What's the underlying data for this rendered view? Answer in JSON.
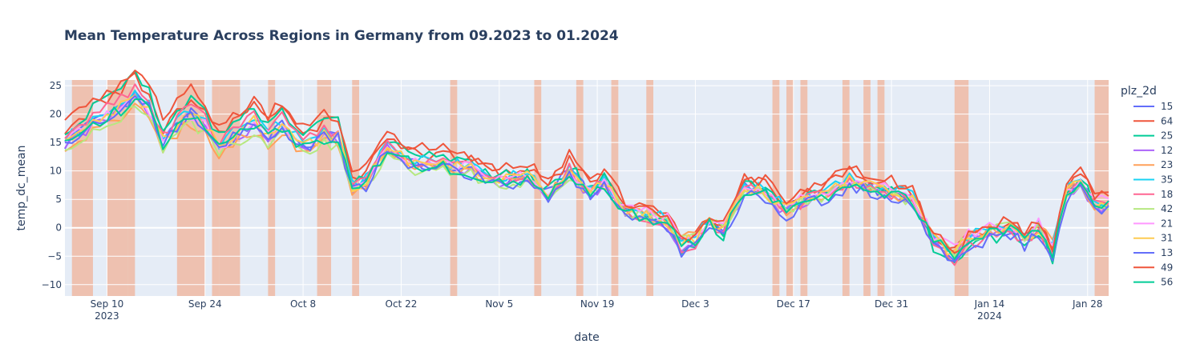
{
  "chart_data": {
    "type": "line",
    "title": "Mean Temperature Across Regions in Germany from 09.2023 to 01.2024",
    "xlabel": "date",
    "ylabel": "temp_dc_mean",
    "x_range": [
      "2023-09-04",
      "2024-01-31"
    ],
    "ylim": [
      -12,
      26
    ],
    "y_ticks": [
      -10,
      -5,
      0,
      5,
      10,
      15,
      20,
      25
    ],
    "x_ticks": [
      {
        "date": "2023-09-10",
        "label": "Sep 10",
        "sublabel": "2023"
      },
      {
        "date": "2023-09-24",
        "label": "Sep 24",
        "sublabel": ""
      },
      {
        "date": "2023-10-08",
        "label": "Oct 8",
        "sublabel": ""
      },
      {
        "date": "2023-10-22",
        "label": "Oct 22",
        "sublabel": ""
      },
      {
        "date": "2023-11-05",
        "label": "Nov 5",
        "sublabel": ""
      },
      {
        "date": "2023-11-19",
        "label": "Nov 19",
        "sublabel": ""
      },
      {
        "date": "2023-12-03",
        "label": "Dec 3",
        "sublabel": ""
      },
      {
        "date": "2023-12-17",
        "label": "Dec 17",
        "sublabel": ""
      },
      {
        "date": "2023-12-31",
        "label": "Dec 31",
        "sublabel": ""
      },
      {
        "date": "2024-01-14",
        "label": "Jan 14",
        "sublabel": "2024"
      },
      {
        "date": "2024-01-28",
        "label": "Jan 28",
        "sublabel": ""
      }
    ],
    "grid": true,
    "legend_title": "plz_2d",
    "legend_position": "right",
    "background": "#e5ecf6",
    "highlight_color": "#f4a582",
    "highlight_ranges": [
      [
        "2023-09-05",
        "2023-09-08"
      ],
      [
        "2023-09-10",
        "2023-09-13"
      ],
      [
        "2023-09-13",
        "2023-09-14"
      ],
      [
        "2023-09-20",
        "2023-09-24"
      ],
      [
        "2023-09-25",
        "2023-09-26"
      ],
      [
        "2023-09-26",
        "2023-09-29"
      ],
      [
        "2023-10-03",
        "2023-10-04"
      ],
      [
        "2023-10-10",
        "2023-10-12"
      ],
      [
        "2023-10-15",
        "2023-10-16"
      ],
      [
        "2023-10-29",
        "2023-10-30"
      ],
      [
        "2023-11-10",
        "2023-11-11"
      ],
      [
        "2023-11-16",
        "2023-11-17"
      ],
      [
        "2023-11-21",
        "2023-11-22"
      ],
      [
        "2023-11-26",
        "2023-11-27"
      ],
      [
        "2023-12-14",
        "2023-12-15"
      ],
      [
        "2023-12-16",
        "2023-12-17"
      ],
      [
        "2023-12-18",
        "2023-12-19"
      ],
      [
        "2023-12-24",
        "2023-12-25"
      ],
      [
        "2023-12-27",
        "2023-12-28"
      ],
      [
        "2023-12-29",
        "2023-12-30"
      ],
      [
        "2024-01-09",
        "2024-01-11"
      ],
      [
        "2024-01-29",
        "2024-01-31"
      ]
    ],
    "anchor_dates": [
      "2023-09-04",
      "2023-09-09",
      "2023-09-12",
      "2023-09-14",
      "2023-09-16",
      "2023-09-18",
      "2023-09-20",
      "2023-09-22",
      "2023-09-24",
      "2023-09-26",
      "2023-09-28",
      "2023-10-01",
      "2023-10-03",
      "2023-10-05",
      "2023-10-08",
      "2023-10-11",
      "2023-10-13",
      "2023-10-15",
      "2023-10-17",
      "2023-10-20",
      "2023-10-24",
      "2023-10-28",
      "2023-11-01",
      "2023-11-05",
      "2023-11-09",
      "2023-11-12",
      "2023-11-15",
      "2023-11-18",
      "2023-11-20",
      "2023-11-23",
      "2023-11-26",
      "2023-11-29",
      "2023-12-01",
      "2023-12-03",
      "2023-12-05",
      "2023-12-07",
      "2023-12-10",
      "2023-12-13",
      "2023-12-16",
      "2023-12-19",
      "2023-12-22",
      "2023-12-25",
      "2023-12-28",
      "2023-12-31",
      "2024-01-03",
      "2024-01-06",
      "2024-01-09",
      "2024-01-11",
      "2024-01-14",
      "2024-01-17",
      "2024-01-19",
      "2024-01-21",
      "2024-01-23",
      "2024-01-25",
      "2024-01-27",
      "2024-01-29",
      "2024-01-31"
    ],
    "anchor_mean": [
      15,
      19,
      21,
      23,
      21,
      15,
      18,
      20,
      18,
      14,
      16,
      18.5,
      16,
      18,
      14,
      16,
      16,
      7,
      8,
      14,
      11,
      11,
      10,
      8,
      9,
      6,
      10,
      6,
      8,
      3,
      2,
      1,
      -3,
      -2,
      1,
      -1,
      7,
      6,
      3,
      5,
      6,
      8,
      7,
      6,
      5,
      -2,
      -5,
      -2,
      -1,
      0,
      -2,
      0,
      -4,
      6,
      8,
      4,
      4
    ],
    "series": [
      {
        "name": "15",
        "color": "#636efa",
        "offset": 0.0,
        "amp": 1.0
      },
      {
        "name": "64",
        "color": "#ef553b",
        "offset": 1.0,
        "amp": 1.1
      },
      {
        "name": "25",
        "color": "#00cc96",
        "offset": -0.8,
        "amp": 1.2
      },
      {
        "name": "12",
        "color": "#ab63fa",
        "offset": -0.3,
        "amp": 1.0
      },
      {
        "name": "23",
        "color": "#ffa15a",
        "offset": 0.5,
        "amp": 0.9
      },
      {
        "name": "35",
        "color": "#19d3f3",
        "offset": 0.6,
        "amp": 1.0
      },
      {
        "name": "18",
        "color": "#ff6692",
        "offset": -0.5,
        "amp": 1.1
      },
      {
        "name": "42",
        "color": "#b6e880",
        "offset": 0.3,
        "amp": 0.9
      },
      {
        "name": "21",
        "color": "#ff97ff",
        "offset": 0.8,
        "amp": 0.95
      },
      {
        "name": "31",
        "color": "#fecb52",
        "offset": 0.2,
        "amp": 1.0
      },
      {
        "name": "13",
        "color": "#636efa",
        "offset": -1.0,
        "amp": 1.05
      },
      {
        "name": "49",
        "color": "#ef553b",
        "offset": 1.3,
        "amp": 1.15
      },
      {
        "name": "56",
        "color": "#00cc96",
        "offset": -0.2,
        "amp": 1.0
      }
    ]
  }
}
